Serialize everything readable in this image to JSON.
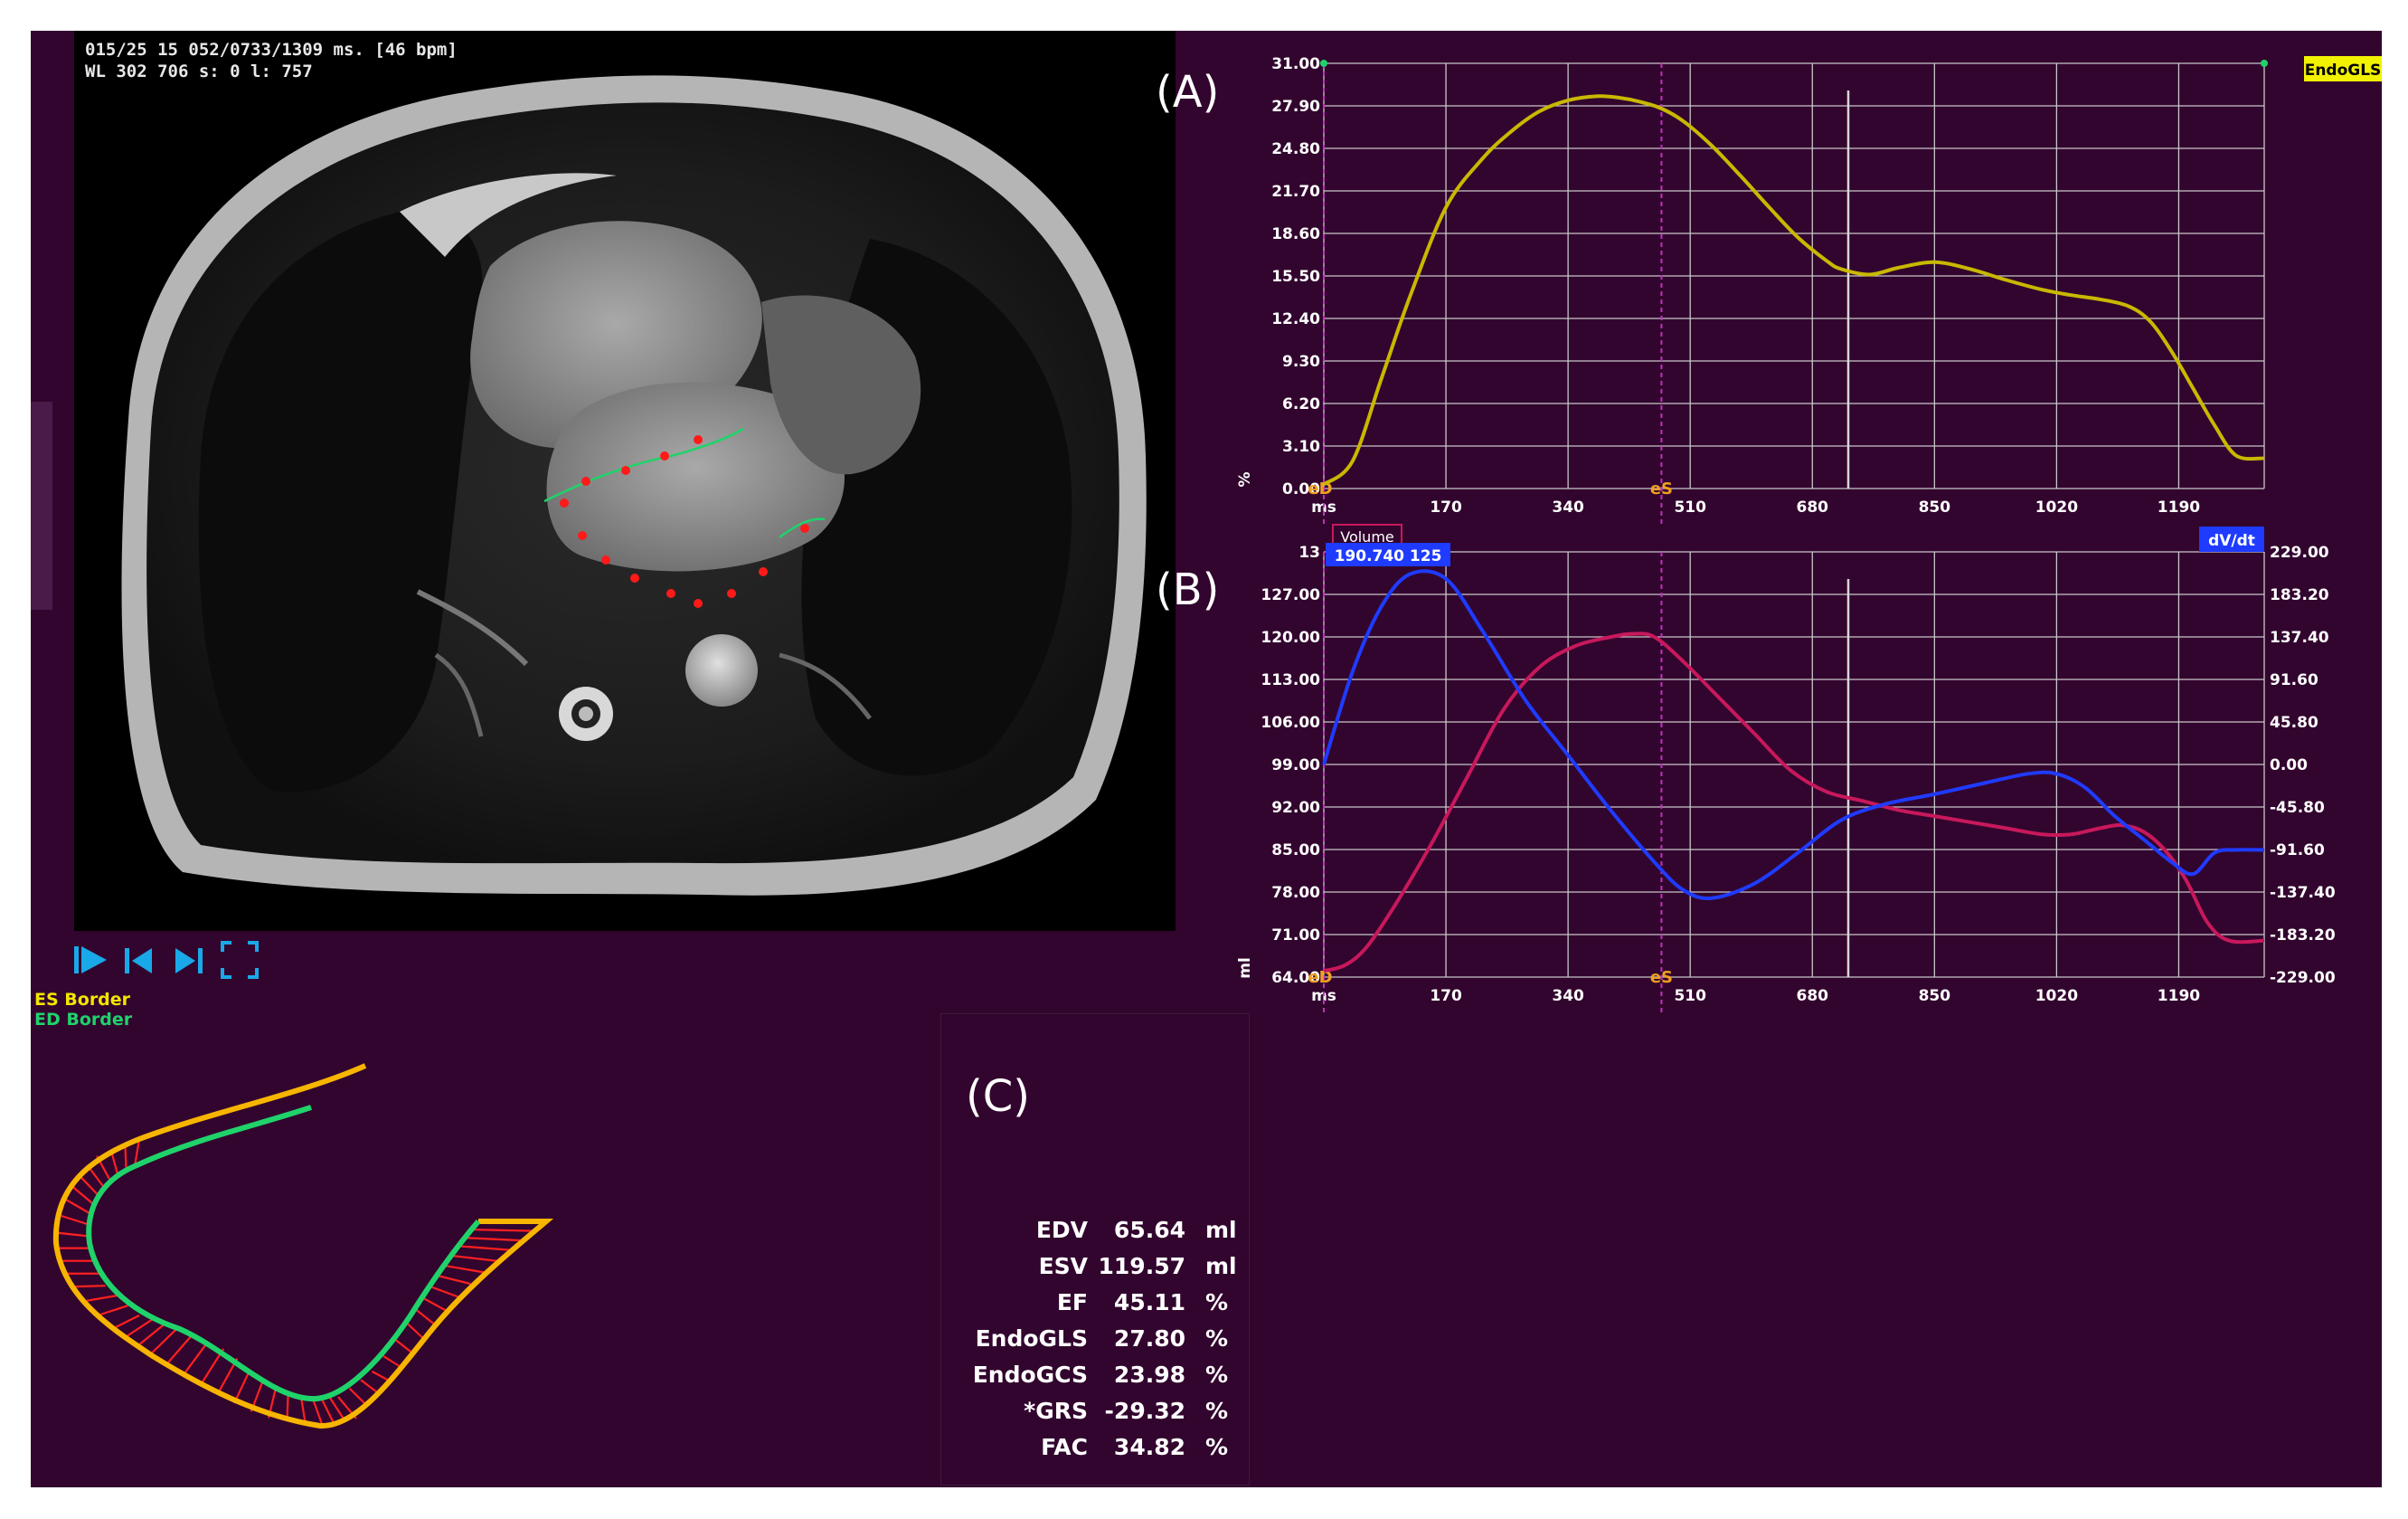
{
  "viewer": {
    "overlay_line1": "015/25 15 052/0733/1309 ms. [46 bpm]",
    "overlay_line2": "WL 302 706  s: 0  l: 757",
    "legend_es": "ES Border",
    "legend_ed": "ED Border",
    "controls": [
      "play-icon",
      "previous-frame-icon",
      "next-frame-icon",
      "fullscreen-icon"
    ]
  },
  "panel_labels": {
    "a": "(A)",
    "b": "(B)",
    "c": "(C)"
  },
  "colors": {
    "background": "#32052e",
    "grid": "#c8c8c8",
    "strain_curve": "#c9b800",
    "volume_curve": "#c8185c",
    "dvdt_curve": "#1f3bff",
    "es_border": "#f2e600",
    "ed_border": "#1fd36a",
    "marker_line": "#c030c0"
  },
  "chart_data": [
    {
      "id": "A",
      "type": "line",
      "legend_tag": "EndoGLS",
      "ylabel": "%",
      "x_ticks": [
        "ms",
        "170",
        "340",
        "510",
        "680",
        "850",
        "1020",
        "1190"
      ],
      "y_ticks": [
        "0.00",
        "3.10",
        "6.20",
        "9.30",
        "12.40",
        "15.50",
        "18.60",
        "21.70",
        "24.80",
        "27.90",
        "31.00"
      ],
      "ylim": [
        0,
        31
      ],
      "xlim": [
        0,
        1309
      ],
      "markers": [
        {
          "label": "eD",
          "x": 0
        },
        {
          "label": "eS",
          "x": 470
        }
      ],
      "series": [
        {
          "x": [
            0,
            40,
            80,
            120,
            170,
            220,
            260,
            300,
            340,
            380,
            410,
            440,
            470,
            500,
            540,
            580,
            620,
            660,
            700,
            720,
            760,
            800,
            850,
            900,
            950,
            1000,
            1040,
            1080,
            1120,
            1150,
            1180,
            1210,
            1240,
            1270,
            1309
          ],
          "y": [
            0.3,
            2.0,
            8.0,
            14.0,
            20.5,
            24.0,
            26.0,
            27.5,
            28.3,
            28.6,
            28.5,
            28.2,
            27.7,
            26.8,
            25.0,
            22.8,
            20.5,
            18.3,
            16.6,
            16.0,
            15.6,
            16.1,
            16.5,
            16.0,
            15.2,
            14.5,
            14.1,
            13.8,
            13.3,
            12.2,
            10.0,
            7.3,
            4.6,
            2.4,
            2.2
          ]
        }
      ]
    },
    {
      "id": "B",
      "type": "line",
      "left_legend_tag": "Volume",
      "right_legend_tag": "dV/dt",
      "readout": "190.740  125",
      "ylabel": "ml",
      "x_ticks": [
        "ms",
        "170",
        "340",
        "510",
        "680",
        "850",
        "1020",
        "1190"
      ],
      "y_ticks_left": [
        "64.00",
        "71.00",
        "78.00",
        "85.00",
        "92.00",
        "99.00",
        "106.00",
        "113.00",
        "120.00",
        "127.00",
        "13"
      ],
      "y_ticks_right": [
        "-229.00",
        "-183.20",
        "-137.40",
        "-91.60",
        "-45.80",
        "0.00",
        "45.80",
        "91.60",
        "137.40",
        "183.20",
        "229.00"
      ],
      "ylim_left": [
        64,
        134
      ],
      "ylim_right": [
        -229,
        229
      ],
      "xlim": [
        0,
        1309
      ],
      "markers": [
        {
          "label": "eD",
          "x": 0
        },
        {
          "label": "eS",
          "x": 470
        }
      ],
      "series": [
        {
          "name": "Volume",
          "axis": "left",
          "x": [
            0,
            30,
            60,
            100,
            150,
            200,
            250,
            300,
            350,
            400,
            430,
            460,
            500,
            550,
            600,
            650,
            700,
            750,
            800,
            850,
            900,
            950,
            1000,
            1040,
            1080,
            1110,
            1140,
            1170,
            1200,
            1230,
            1260,
            1309
          ],
          "y": [
            65.0,
            66.0,
            69.0,
            76.0,
            86.0,
            97.0,
            108.0,
            115.0,
            118.5,
            120.0,
            120.5,
            120.0,
            116.0,
            110.0,
            104.0,
            98.0,
            94.5,
            93.0,
            91.5,
            90.5,
            89.5,
            88.5,
            87.5,
            87.5,
            88.5,
            89.0,
            88.0,
            85.0,
            80.0,
            73.0,
            70.0,
            70.0
          ]
        },
        {
          "name": "dV/dt",
          "axis": "right",
          "x": [
            0,
            40,
            80,
            120,
            170,
            220,
            280,
            340,
            400,
            460,
            500,
            540,
            600,
            660,
            720,
            780,
            850,
            920,
            980,
            1020,
            1060,
            1100,
            1140,
            1180,
            1210,
            1240,
            1270,
            1309
          ],
          "y": [
            0,
            100,
            170,
            205,
            200,
            145,
            70,
            10,
            -50,
            -105,
            -135,
            -144,
            -128,
            -95,
            -60,
            -43,
            -32,
            -20,
            -10,
            -10,
            -25,
            -55,
            -80,
            -105,
            -118,
            -95,
            -92,
            -92
          ]
        }
      ]
    }
  ],
  "metrics": [
    {
      "name": "EDV",
      "value": "65.64",
      "unit": "ml"
    },
    {
      "name": "ESV",
      "value": "119.57",
      "unit": "ml"
    },
    {
      "name": "EF",
      "value": "45.11",
      "unit": "%"
    },
    {
      "name": "EndoGLS",
      "value": "27.80",
      "unit": "%"
    },
    {
      "name": "EndoGCS",
      "value": "23.98",
      "unit": "%"
    },
    {
      "name": "*GRS",
      "value": "-29.32",
      "unit": "%"
    },
    {
      "name": "FAC",
      "value": "34.82",
      "unit": "%"
    }
  ]
}
